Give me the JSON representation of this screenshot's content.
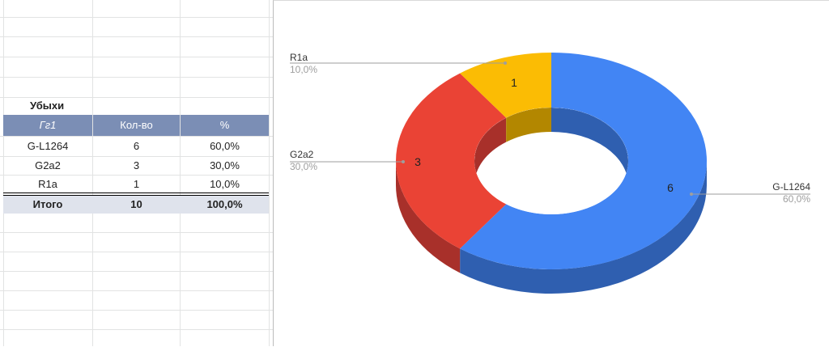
{
  "table": {
    "title": "Убыхи",
    "headers": [
      "Гг1",
      "Кол-во",
      "%"
    ],
    "rows": [
      [
        "G-L1264",
        "6",
        "60,0%"
      ],
      [
        "G2a2",
        "3",
        "30,0%"
      ],
      [
        "R1a",
        "1",
        "10,0%"
      ]
    ],
    "total": [
      "Итого",
      "10",
      "100,0%"
    ]
  },
  "chart_data": {
    "type": "pie",
    "style": "3d-donut",
    "categories": [
      "G-L1264",
      "G2a2",
      "R1a"
    ],
    "values": [
      6,
      3,
      1
    ],
    "percent_labels": [
      "60,0%",
      "30,0%",
      "10,0%"
    ],
    "colors": [
      "#4285f4",
      "#ea4335",
      "#fbbc04"
    ],
    "side_colors": [
      "#2f5fb0",
      "#a8302a",
      "#b38700"
    ],
    "legend": "labels-with-leader-lines"
  }
}
